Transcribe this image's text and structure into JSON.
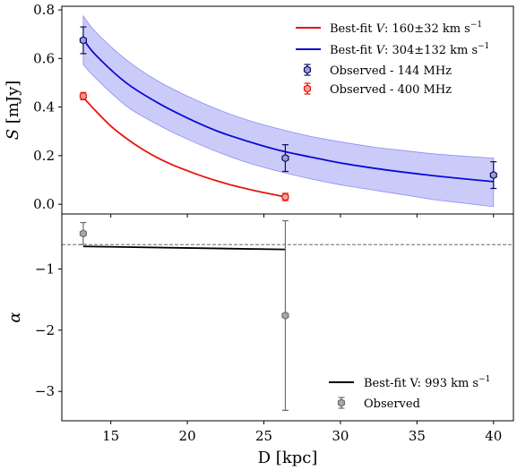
{
  "chart_data": [
    {
      "type": "line",
      "panel": "top",
      "ylabel": "S [mJy]",
      "xlim": [
        11.8,
        41.3
      ],
      "ylim": [
        -0.04,
        0.815
      ],
      "yticks": [
        0.0,
        0.2,
        0.4,
        0.6,
        0.8
      ],
      "ytick_labels": [
        "0.0",
        "0.2",
        "0.4",
        "0.6",
        "0.8"
      ],
      "legend_position": "top-right",
      "series": [
        {
          "name": "Best-fit V: 160±32 km s⁻¹",
          "legend_label": {
            "pre": "Best-fit ",
            "italic": "V",
            "post": ": 160±32 km s",
            "sup": "−1"
          },
          "kind": "line",
          "color": "#e8150b",
          "x": [
            13.2,
            14,
            15,
            16,
            17,
            18,
            19,
            20,
            21,
            22,
            23,
            24,
            25,
            26.4
          ],
          "y": [
            0.44,
            0.385,
            0.322,
            0.272,
            0.229,
            0.193,
            0.163,
            0.138,
            0.115,
            0.095,
            0.077,
            0.062,
            0.048,
            0.03
          ]
        },
        {
          "name": "Best-fit V: 304±132 km s⁻¹",
          "legend_label": {
            "pre": "Best-fit ",
            "italic": "V",
            "post": ": 304±132 km s",
            "sup": "−1"
          },
          "kind": "line_band",
          "color": "#0a0ad6",
          "band_color": "#8c8cf5",
          "x": [
            13.2,
            14,
            16,
            18,
            20,
            22,
            24,
            26,
            28,
            30,
            32,
            34,
            36,
            38,
            40
          ],
          "y": [
            0.68,
            0.615,
            0.5,
            0.42,
            0.355,
            0.3,
            0.258,
            0.222,
            0.195,
            0.17,
            0.15,
            0.133,
            0.118,
            0.105,
            0.093
          ],
          "y_upper": [
            0.775,
            0.71,
            0.595,
            0.51,
            0.445,
            0.39,
            0.345,
            0.31,
            0.28,
            0.257,
            0.237,
            0.222,
            0.208,
            0.198,
            0.19
          ],
          "y_lower": [
            0.575,
            0.52,
            0.405,
            0.33,
            0.268,
            0.215,
            0.17,
            0.135,
            0.105,
            0.08,
            0.06,
            0.04,
            0.02,
            0.005,
            -0.01
          ]
        },
        {
          "name": "Observed - 144 MHz",
          "kind": "errorbar",
          "color": "#0a0a5e",
          "fill": "#9aa3d6",
          "x": [
            13.2,
            26.4,
            40.0
          ],
          "y": [
            0.675,
            0.19,
            0.12
          ],
          "yerr": [
            0.055,
            0.055,
            0.055
          ]
        },
        {
          "name": "Observed - 400 MHz",
          "kind": "errorbar",
          "color": "#e8150b",
          "fill": "#f2a09a",
          "x": [
            13.2,
            26.4
          ],
          "y": [
            0.445,
            0.03
          ],
          "yerr": [
            0.015,
            0.015
          ]
        }
      ]
    },
    {
      "type": "line",
      "panel": "bottom",
      "xlabel": "D [kpc]",
      "ylabel": "α",
      "xlim": [
        11.8,
        41.3
      ],
      "ylim": [
        -3.48,
        -0.1
      ],
      "xticks": [
        15,
        20,
        25,
        30,
        35,
        40
      ],
      "xtick_labels": [
        "15",
        "20",
        "25",
        "30",
        "35",
        "40"
      ],
      "yticks": [
        -1,
        -2,
        -3
      ],
      "ytick_labels": [
        "−1",
        "−2",
        "−3"
      ],
      "reference_line_y": -0.6,
      "legend_position": "bottom-right",
      "series": [
        {
          "name": "Best-fit V: 993 km s⁻¹",
          "legend_label": {
            "pre": "Best-fit V: 993 km s",
            "italic": "",
            "post": "",
            "sup": "−1"
          },
          "kind": "line",
          "color": "#000000",
          "x": [
            13.2,
            26.4
          ],
          "y": [
            -0.63,
            -0.68
          ]
        },
        {
          "name": "Observed",
          "kind": "errorbar",
          "color": "#6e6e6e",
          "fill": "#a8a8a8",
          "x": [
            13.2,
            26.4
          ],
          "y": [
            -0.42,
            -1.76
          ],
          "yerr_low": [
            0.18,
            1.55
          ],
          "yerr_high": [
            0.18,
            1.55
          ]
        }
      ]
    }
  ]
}
